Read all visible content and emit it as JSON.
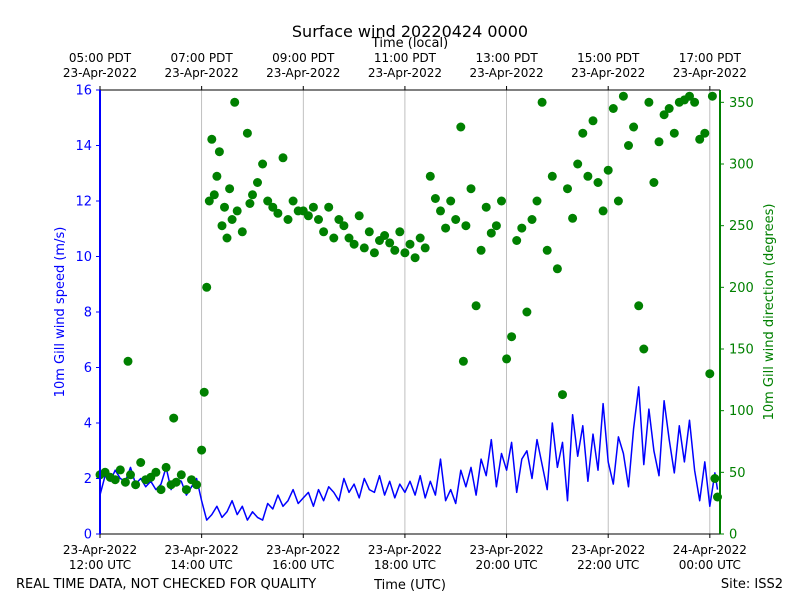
{
  "chart_data": {
    "type": "line+scatter",
    "title": "Surface wind 20220424 0000",
    "top_axis_label": "Time (local)",
    "xlabel": "Time (UTC)",
    "ylabel_left": "10m Gill wind speed (m/s)",
    "ylabel_right": "10m Gill wind direction (degrees)",
    "footer_left": "REAL TIME DATA, NOT CHECKED FOR QUALITY",
    "footer_right": "Site: ISS2",
    "x_range_hours_utc": [
      12.0,
      24.2
    ],
    "ylim_left": [
      0,
      16
    ],
    "ylim_right": [
      0,
      360
    ],
    "left_ticks": [
      0,
      2,
      4,
      6,
      8,
      10,
      12,
      14,
      16
    ],
    "right_ticks": [
      0,
      50,
      100,
      150,
      200,
      250,
      300,
      350
    ],
    "bottom_ticks": [
      {
        "hour": 12,
        "line1": "23-Apr-2022",
        "line2": "12:00 UTC"
      },
      {
        "hour": 14,
        "line1": "23-Apr-2022",
        "line2": "14:00 UTC"
      },
      {
        "hour": 16,
        "line1": "23-Apr-2022",
        "line2": "16:00 UTC"
      },
      {
        "hour": 18,
        "line1": "23-Apr-2022",
        "line2": "18:00 UTC"
      },
      {
        "hour": 20,
        "line1": "23-Apr-2022",
        "line2": "20:00 UTC"
      },
      {
        "hour": 22,
        "line1": "23-Apr-2022",
        "line2": "22:00 UTC"
      },
      {
        "hour": 24,
        "line1": "24-Apr-2022",
        "line2": "00:00 UTC"
      }
    ],
    "top_ticks": [
      {
        "hour": 12,
        "line1": "05:00 PDT",
        "line2": "23-Apr-2022"
      },
      {
        "hour": 14,
        "line1": "07:00 PDT",
        "line2": "23-Apr-2022"
      },
      {
        "hour": 16,
        "line1": "09:00 PDT",
        "line2": "23-Apr-2022"
      },
      {
        "hour": 18,
        "line1": "11:00 PDT",
        "line2": "23-Apr-2022"
      },
      {
        "hour": 20,
        "line1": "13:00 PDT",
        "line2": "23-Apr-2022"
      },
      {
        "hour": 22,
        "line1": "15:00 PDT",
        "line2": "23-Apr-2022"
      },
      {
        "hour": 24,
        "line1": "17:00 PDT",
        "line2": "23-Apr-2022"
      }
    ],
    "series": [
      {
        "name": "10m Gill wind speed",
        "axis": "left",
        "style": "line",
        "color": "#0000ff",
        "points": [
          [
            12.0,
            1.4
          ],
          [
            12.1,
            2.1
          ],
          [
            12.2,
            1.9
          ],
          [
            12.3,
            2.3
          ],
          [
            12.4,
            2.0
          ],
          [
            12.5,
            1.9
          ],
          [
            12.6,
            2.4
          ],
          [
            12.7,
            1.8
          ],
          [
            12.8,
            2.0
          ],
          [
            12.9,
            1.7
          ],
          [
            13.0,
            1.9
          ],
          [
            13.1,
            1.6
          ],
          [
            13.2,
            1.8
          ],
          [
            13.3,
            2.4
          ],
          [
            13.4,
            1.6
          ],
          [
            13.5,
            2.0
          ],
          [
            13.6,
            1.9
          ],
          [
            13.7,
            1.4
          ],
          [
            13.8,
            1.7
          ],
          [
            13.9,
            2.0
          ],
          [
            14.0,
            1.2
          ],
          [
            14.1,
            0.5
          ],
          [
            14.2,
            0.7
          ],
          [
            14.3,
            1.0
          ],
          [
            14.4,
            0.6
          ],
          [
            14.5,
            0.8
          ],
          [
            14.6,
            1.2
          ],
          [
            14.7,
            0.7
          ],
          [
            14.8,
            1.0
          ],
          [
            14.9,
            0.5
          ],
          [
            15.0,
            0.8
          ],
          [
            15.1,
            0.6
          ],
          [
            15.2,
            0.5
          ],
          [
            15.3,
            1.1
          ],
          [
            15.4,
            0.9
          ],
          [
            15.5,
            1.4
          ],
          [
            15.6,
            1.0
          ],
          [
            15.7,
            1.2
          ],
          [
            15.8,
            1.6
          ],
          [
            15.9,
            1.1
          ],
          [
            16.0,
            1.3
          ],
          [
            16.1,
            1.5
          ],
          [
            16.2,
            1.0
          ],
          [
            16.3,
            1.6
          ],
          [
            16.4,
            1.2
          ],
          [
            16.5,
            1.7
          ],
          [
            16.6,
            1.5
          ],
          [
            16.7,
            1.2
          ],
          [
            16.8,
            2.0
          ],
          [
            16.9,
            1.5
          ],
          [
            17.0,
            1.8
          ],
          [
            17.1,
            1.3
          ],
          [
            17.2,
            2.0
          ],
          [
            17.3,
            1.6
          ],
          [
            17.4,
            1.5
          ],
          [
            17.5,
            2.1
          ],
          [
            17.6,
            1.4
          ],
          [
            17.7,
            1.9
          ],
          [
            17.8,
            1.3
          ],
          [
            17.9,
            1.8
          ],
          [
            18.0,
            1.5
          ],
          [
            18.1,
            1.9
          ],
          [
            18.2,
            1.4
          ],
          [
            18.3,
            2.1
          ],
          [
            18.4,
            1.3
          ],
          [
            18.5,
            1.9
          ],
          [
            18.6,
            1.4
          ],
          [
            18.7,
            2.7
          ],
          [
            18.8,
            1.2
          ],
          [
            18.9,
            1.6
          ],
          [
            19.0,
            1.1
          ],
          [
            19.1,
            2.3
          ],
          [
            19.2,
            1.7
          ],
          [
            19.3,
            2.4
          ],
          [
            19.4,
            1.4
          ],
          [
            19.5,
            2.7
          ],
          [
            19.6,
            2.1
          ],
          [
            19.7,
            3.4
          ],
          [
            19.8,
            1.7
          ],
          [
            19.9,
            2.9
          ],
          [
            20.0,
            2.3
          ],
          [
            20.1,
            3.3
          ],
          [
            20.2,
            1.5
          ],
          [
            20.3,
            2.7
          ],
          [
            20.4,
            3.0
          ],
          [
            20.5,
            2.0
          ],
          [
            20.6,
            3.4
          ],
          [
            20.7,
            2.5
          ],
          [
            20.8,
            1.6
          ],
          [
            20.9,
            4.0
          ],
          [
            21.0,
            2.4
          ],
          [
            21.1,
            3.3
          ],
          [
            21.2,
            1.2
          ],
          [
            21.3,
            4.3
          ],
          [
            21.4,
            2.8
          ],
          [
            21.5,
            3.9
          ],
          [
            21.6,
            1.9
          ],
          [
            21.7,
            3.6
          ],
          [
            21.8,
            2.3
          ],
          [
            21.9,
            4.7
          ],
          [
            22.0,
            2.6
          ],
          [
            22.1,
            1.8
          ],
          [
            22.2,
            3.5
          ],
          [
            22.3,
            2.9
          ],
          [
            22.4,
            1.7
          ],
          [
            22.5,
            3.8
          ],
          [
            22.6,
            5.3
          ],
          [
            22.7,
            2.5
          ],
          [
            22.8,
            4.5
          ],
          [
            22.9,
            3.0
          ],
          [
            23.0,
            2.1
          ],
          [
            23.1,
            4.8
          ],
          [
            23.2,
            3.4
          ],
          [
            23.3,
            2.2
          ],
          [
            23.4,
            3.9
          ],
          [
            23.5,
            2.6
          ],
          [
            23.6,
            4.1
          ],
          [
            23.7,
            2.3
          ],
          [
            23.8,
            1.2
          ],
          [
            23.9,
            2.6
          ],
          [
            24.0,
            1.0
          ],
          [
            24.1,
            2.2
          ],
          [
            24.15,
            1.6
          ]
        ]
      },
      {
        "name": "10m Gill wind direction",
        "axis": "right",
        "style": "scatter",
        "color": "#008000",
        "points": [
          [
            12.0,
            48
          ],
          [
            12.1,
            50
          ],
          [
            12.2,
            46
          ],
          [
            12.3,
            44
          ],
          [
            12.4,
            52
          ],
          [
            12.5,
            42
          ],
          [
            12.55,
            140
          ],
          [
            12.6,
            48
          ],
          [
            12.7,
            40
          ],
          [
            12.8,
            58
          ],
          [
            12.9,
            44
          ],
          [
            13.0,
            46
          ],
          [
            13.1,
            50
          ],
          [
            13.2,
            36
          ],
          [
            13.3,
            54
          ],
          [
            13.4,
            40
          ],
          [
            13.45,
            94
          ],
          [
            13.5,
            42
          ],
          [
            13.6,
            48
          ],
          [
            13.7,
            36
          ],
          [
            13.8,
            44
          ],
          [
            13.9,
            40
          ],
          [
            14.0,
            68
          ],
          [
            14.05,
            115
          ],
          [
            14.1,
            200
          ],
          [
            14.15,
            270
          ],
          [
            14.2,
            320
          ],
          [
            14.25,
            275
          ],
          [
            14.3,
            290
          ],
          [
            14.35,
            310
          ],
          [
            14.4,
            250
          ],
          [
            14.45,
            265
          ],
          [
            14.5,
            240
          ],
          [
            14.55,
            280
          ],
          [
            14.6,
            255
          ],
          [
            14.65,
            350
          ],
          [
            14.7,
            262
          ],
          [
            14.8,
            245
          ],
          [
            14.9,
            325
          ],
          [
            14.95,
            268
          ],
          [
            15.0,
            275
          ],
          [
            15.1,
            285
          ],
          [
            15.2,
            300
          ],
          [
            15.3,
            270
          ],
          [
            15.4,
            265
          ],
          [
            15.5,
            260
          ],
          [
            15.6,
            305
          ],
          [
            15.7,
            255
          ],
          [
            15.8,
            270
          ],
          [
            15.9,
            262
          ],
          [
            16.0,
            262
          ],
          [
            16.1,
            258
          ],
          [
            16.2,
            265
          ],
          [
            16.3,
            255
          ],
          [
            16.4,
            245
          ],
          [
            16.5,
            265
          ],
          [
            16.6,
            240
          ],
          [
            16.7,
            255
          ],
          [
            16.8,
            250
          ],
          [
            16.9,
            240
          ],
          [
            17.0,
            235
          ],
          [
            17.1,
            258
          ],
          [
            17.2,
            232
          ],
          [
            17.3,
            245
          ],
          [
            17.4,
            228
          ],
          [
            17.5,
            238
          ],
          [
            17.6,
            242
          ],
          [
            17.7,
            236
          ],
          [
            17.8,
            230
          ],
          [
            17.9,
            245
          ],
          [
            18.0,
            228
          ],
          [
            18.1,
            235
          ],
          [
            18.2,
            224
          ],
          [
            18.3,
            240
          ],
          [
            18.4,
            232
          ],
          [
            18.5,
            290
          ],
          [
            18.6,
            272
          ],
          [
            18.7,
            262
          ],
          [
            18.8,
            248
          ],
          [
            18.9,
            270
          ],
          [
            19.0,
            255
          ],
          [
            19.1,
            330
          ],
          [
            19.15,
            140
          ],
          [
            19.2,
            250
          ],
          [
            19.3,
            280
          ],
          [
            19.4,
            185
          ],
          [
            19.5,
            230
          ],
          [
            19.6,
            265
          ],
          [
            19.7,
            244
          ],
          [
            19.8,
            250
          ],
          [
            19.9,
            270
          ],
          [
            20.0,
            142
          ],
          [
            20.1,
            160
          ],
          [
            20.2,
            238
          ],
          [
            20.3,
            248
          ],
          [
            20.4,
            180
          ],
          [
            20.5,
            255
          ],
          [
            20.6,
            270
          ],
          [
            20.7,
            350
          ],
          [
            20.8,
            230
          ],
          [
            20.9,
            290
          ],
          [
            21.0,
            215
          ],
          [
            21.1,
            113
          ],
          [
            21.2,
            280
          ],
          [
            21.3,
            256
          ],
          [
            21.4,
            300
          ],
          [
            21.5,
            325
          ],
          [
            21.6,
            290
          ],
          [
            21.7,
            335
          ],
          [
            21.8,
            285
          ],
          [
            21.9,
            262
          ],
          [
            22.0,
            295
          ],
          [
            22.1,
            345
          ],
          [
            22.2,
            270
          ],
          [
            22.3,
            355
          ],
          [
            22.4,
            315
          ],
          [
            22.5,
            330
          ],
          [
            22.6,
            185
          ],
          [
            22.7,
            150
          ],
          [
            22.8,
            350
          ],
          [
            22.9,
            285
          ],
          [
            23.0,
            318
          ],
          [
            23.1,
            340
          ],
          [
            23.2,
            345
          ],
          [
            23.3,
            325
          ],
          [
            23.4,
            350
          ],
          [
            23.5,
            352
          ],
          [
            23.6,
            355
          ],
          [
            23.7,
            350
          ],
          [
            23.8,
            320
          ],
          [
            23.9,
            325
          ],
          [
            24.0,
            130
          ],
          [
            24.05,
            355
          ],
          [
            24.1,
            45
          ],
          [
            24.15,
            30
          ]
        ]
      }
    ]
  }
}
